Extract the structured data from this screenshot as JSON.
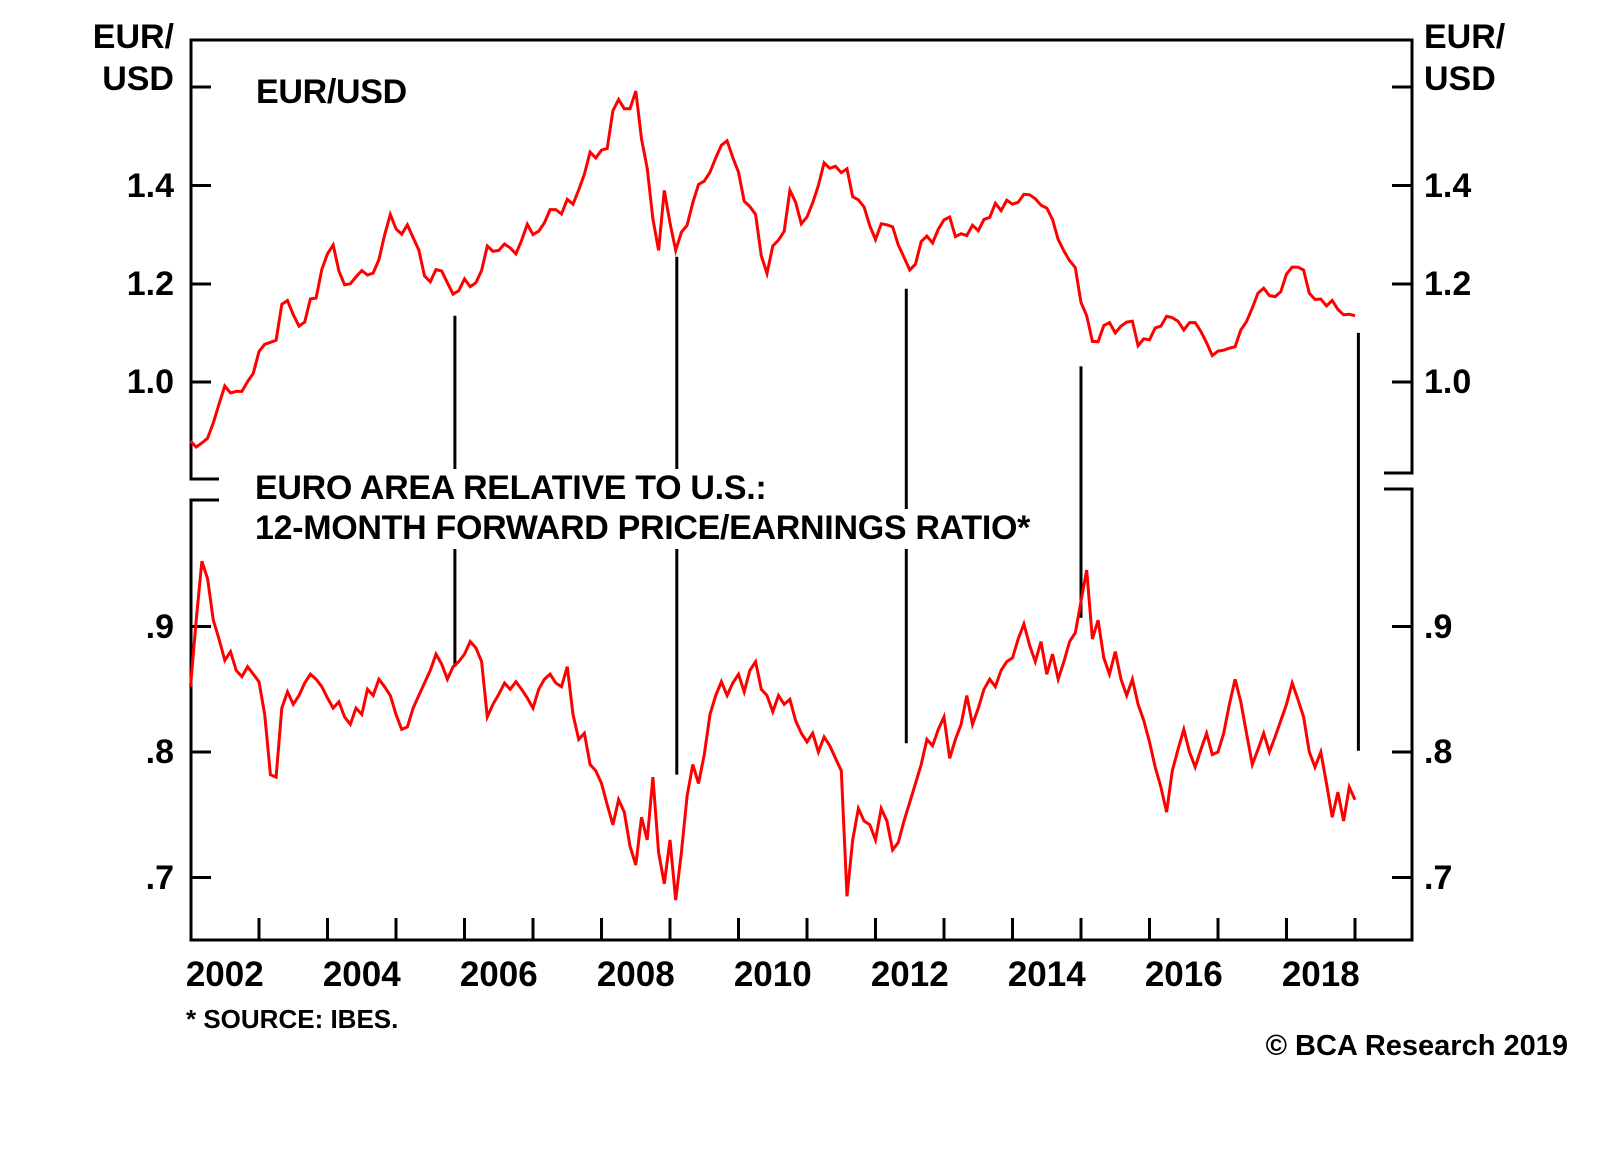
{
  "axis_corner_labels": {
    "top_left": [
      "EUR/",
      "USD"
    ],
    "top_right": [
      "EUR/",
      "USD"
    ]
  },
  "footnote": "* SOURCE: IBES.",
  "copyright": "© BCA Research 2019",
  "colors": {
    "series": "#ff0000",
    "axis": "#000000",
    "annotation_line": "#000000",
    "text": "#000000",
    "background": "#ffffff"
  },
  "x_axis": {
    "tick_years": [
      2003,
      2004,
      2005,
      2006,
      2007,
      2008,
      2009,
      2010,
      2011,
      2012,
      2013,
      2014,
      2015,
      2016,
      2017,
      2018,
      2019
    ],
    "label_years": [
      2002,
      2004,
      2006,
      2008,
      2010,
      2012,
      2014,
      2016,
      2018
    ],
    "range_years": [
      2002.0,
      2019.83
    ]
  },
  "chart_data": [
    {
      "panel": "top",
      "type": "line",
      "title": "EUR/USD",
      "series_name": "EUR/USD exchange rate",
      "ylabel": "EUR/USD",
      "ylim": [
        0.803,
        1.698
      ],
      "yticks": [
        {
          "v": 1.0,
          "label": "1.0"
        },
        {
          "v": 1.2,
          "label": "1.2"
        },
        {
          "v": 1.4,
          "label": "1.4"
        },
        {
          "v": 1.6,
          "label": ""
        }
      ],
      "x_start_year": 2002.0,
      "x_step_months": 1,
      "values": [
        0.88,
        0.868,
        0.876,
        0.886,
        0.917,
        0.955,
        0.992,
        0.978,
        0.981,
        0.981,
        1.001,
        1.018,
        1.062,
        1.077,
        1.081,
        1.085,
        1.158,
        1.166,
        1.137,
        1.114,
        1.122,
        1.169,
        1.171,
        1.229,
        1.261,
        1.279,
        1.226,
        1.198,
        1.2,
        1.214,
        1.227,
        1.218,
        1.222,
        1.249,
        1.299,
        1.341,
        1.312,
        1.301,
        1.32,
        1.294,
        1.269,
        1.216,
        1.204,
        1.229,
        1.226,
        1.202,
        1.179,
        1.186,
        1.21,
        1.194,
        1.202,
        1.227,
        1.277,
        1.266,
        1.268,
        1.281,
        1.273,
        1.261,
        1.288,
        1.321,
        1.3,
        1.307,
        1.324,
        1.351,
        1.351,
        1.342,
        1.372,
        1.362,
        1.391,
        1.423,
        1.468,
        1.456,
        1.472,
        1.475,
        1.552,
        1.575,
        1.556,
        1.556,
        1.592,
        1.495,
        1.435,
        1.332,
        1.268,
        1.39,
        1.324,
        1.268,
        1.305,
        1.319,
        1.365,
        1.402,
        1.409,
        1.427,
        1.456,
        1.482,
        1.491,
        1.457,
        1.427,
        1.368,
        1.357,
        1.341,
        1.257,
        1.221,
        1.277,
        1.289,
        1.307,
        1.39,
        1.366,
        1.322,
        1.336,
        1.365,
        1.4,
        1.446,
        1.435,
        1.439,
        1.426,
        1.434,
        1.377,
        1.371,
        1.356,
        1.318,
        1.29,
        1.322,
        1.32,
        1.316,
        1.279,
        1.254,
        1.228,
        1.24,
        1.286,
        1.297,
        1.283,
        1.311,
        1.33,
        1.336,
        1.296,
        1.302,
        1.298,
        1.319,
        1.308,
        1.331,
        1.335,
        1.364,
        1.349,
        1.37,
        1.362,
        1.366,
        1.382,
        1.381,
        1.373,
        1.36,
        1.354,
        1.331,
        1.29,
        1.267,
        1.247,
        1.233,
        1.162,
        1.135,
        1.083,
        1.082,
        1.115,
        1.121,
        1.1,
        1.114,
        1.122,
        1.124,
        1.074,
        1.088,
        1.086,
        1.11,
        1.114,
        1.134,
        1.131,
        1.124,
        1.106,
        1.121,
        1.121,
        1.103,
        1.08,
        1.054,
        1.063,
        1.065,
        1.069,
        1.072,
        1.106,
        1.123,
        1.151,
        1.181,
        1.191,
        1.176,
        1.174,
        1.184,
        1.22,
        1.234,
        1.234,
        1.228,
        1.181,
        1.168,
        1.169,
        1.155,
        1.166,
        1.148,
        1.137,
        1.138,
        1.135
      ]
    },
    {
      "panel": "bottom",
      "type": "line",
      "title_lines": [
        "EURO AREA RELATIVE TO U.S.:",
        "12-MONTH FORWARD PRICE/EARNINGS RATIO*"
      ],
      "series_name": "Euro area relative to U.S. 12-month forward price/earnings ratio",
      "ylim": [
        0.65,
        1.0
      ],
      "yticks": [
        {
          "v": 0.7,
          "label": ".7"
        },
        {
          "v": 0.8,
          "label": ".8"
        },
        {
          "v": 0.9,
          "label": ".9"
        }
      ],
      "x_start_year": 2002.0,
      "x_step_months": 1,
      "values": [
        0.852,
        0.905,
        0.952,
        0.938,
        0.905,
        0.89,
        0.873,
        0.88,
        0.865,
        0.86,
        0.868,
        0.862,
        0.856,
        0.83,
        0.782,
        0.78,
        0.835,
        0.848,
        0.838,
        0.845,
        0.855,
        0.862,
        0.858,
        0.852,
        0.843,
        0.835,
        0.84,
        0.828,
        0.822,
        0.835,
        0.83,
        0.85,
        0.845,
        0.858,
        0.852,
        0.845,
        0.83,
        0.818,
        0.82,
        0.835,
        0.845,
        0.855,
        0.865,
        0.878,
        0.87,
        0.858,
        0.868,
        0.872,
        0.878,
        0.888,
        0.883,
        0.872,
        0.828,
        0.838,
        0.846,
        0.855,
        0.85,
        0.856,
        0.85,
        0.843,
        0.835,
        0.85,
        0.858,
        0.862,
        0.855,
        0.852,
        0.868,
        0.83,
        0.81,
        0.815,
        0.79,
        0.785,
        0.775,
        0.758,
        0.742,
        0.762,
        0.752,
        0.725,
        0.71,
        0.748,
        0.73,
        0.78,
        0.72,
        0.695,
        0.73,
        0.682,
        0.72,
        0.765,
        0.79,
        0.775,
        0.798,
        0.83,
        0.845,
        0.856,
        0.845,
        0.855,
        0.862,
        0.848,
        0.865,
        0.872,
        0.85,
        0.845,
        0.832,
        0.845,
        0.838,
        0.842,
        0.825,
        0.815,
        0.808,
        0.815,
        0.8,
        0.812,
        0.805,
        0.795,
        0.785,
        0.685,
        0.73,
        0.755,
        0.745,
        0.742,
        0.73,
        0.755,
        0.745,
        0.722,
        0.728,
        0.745,
        0.76,
        0.775,
        0.79,
        0.81,
        0.805,
        0.818,
        0.828,
        0.795,
        0.81,
        0.822,
        0.845,
        0.822,
        0.835,
        0.85,
        0.858,
        0.852,
        0.865,
        0.872,
        0.875,
        0.89,
        0.902,
        0.885,
        0.872,
        0.888,
        0.862,
        0.878,
        0.858,
        0.872,
        0.888,
        0.895,
        0.92,
        0.945,
        0.89,
        0.905,
        0.875,
        0.862,
        0.88,
        0.858,
        0.845,
        0.858,
        0.838,
        0.825,
        0.808,
        0.788,
        0.772,
        0.752,
        0.785,
        0.802,
        0.818,
        0.8,
        0.788,
        0.802,
        0.815,
        0.798,
        0.8,
        0.815,
        0.838,
        0.858,
        0.84,
        0.815,
        0.79,
        0.802,
        0.815,
        0.8,
        0.812,
        0.825,
        0.838,
        0.855,
        0.842,
        0.828,
        0.8,
        0.788,
        0.8,
        0.775,
        0.748,
        0.768,
        0.745,
        0.772,
        0.762
      ]
    }
  ],
  "annotation_lines": [
    {
      "year": 2005.86,
      "top_value": 1.135,
      "bottom_value": 0.868
    },
    {
      "year": 2009.1,
      "top_value": 1.255,
      "bottom_value": 0.782
    },
    {
      "year": 2012.45,
      "top_value": 1.19,
      "bottom_value": 0.807
    },
    {
      "year": 2015.0,
      "top_value": 1.032,
      "bottom_value": 0.907
    },
    {
      "year": 2019.05,
      "top_value": 1.1,
      "bottom_value": 0.801
    }
  ]
}
